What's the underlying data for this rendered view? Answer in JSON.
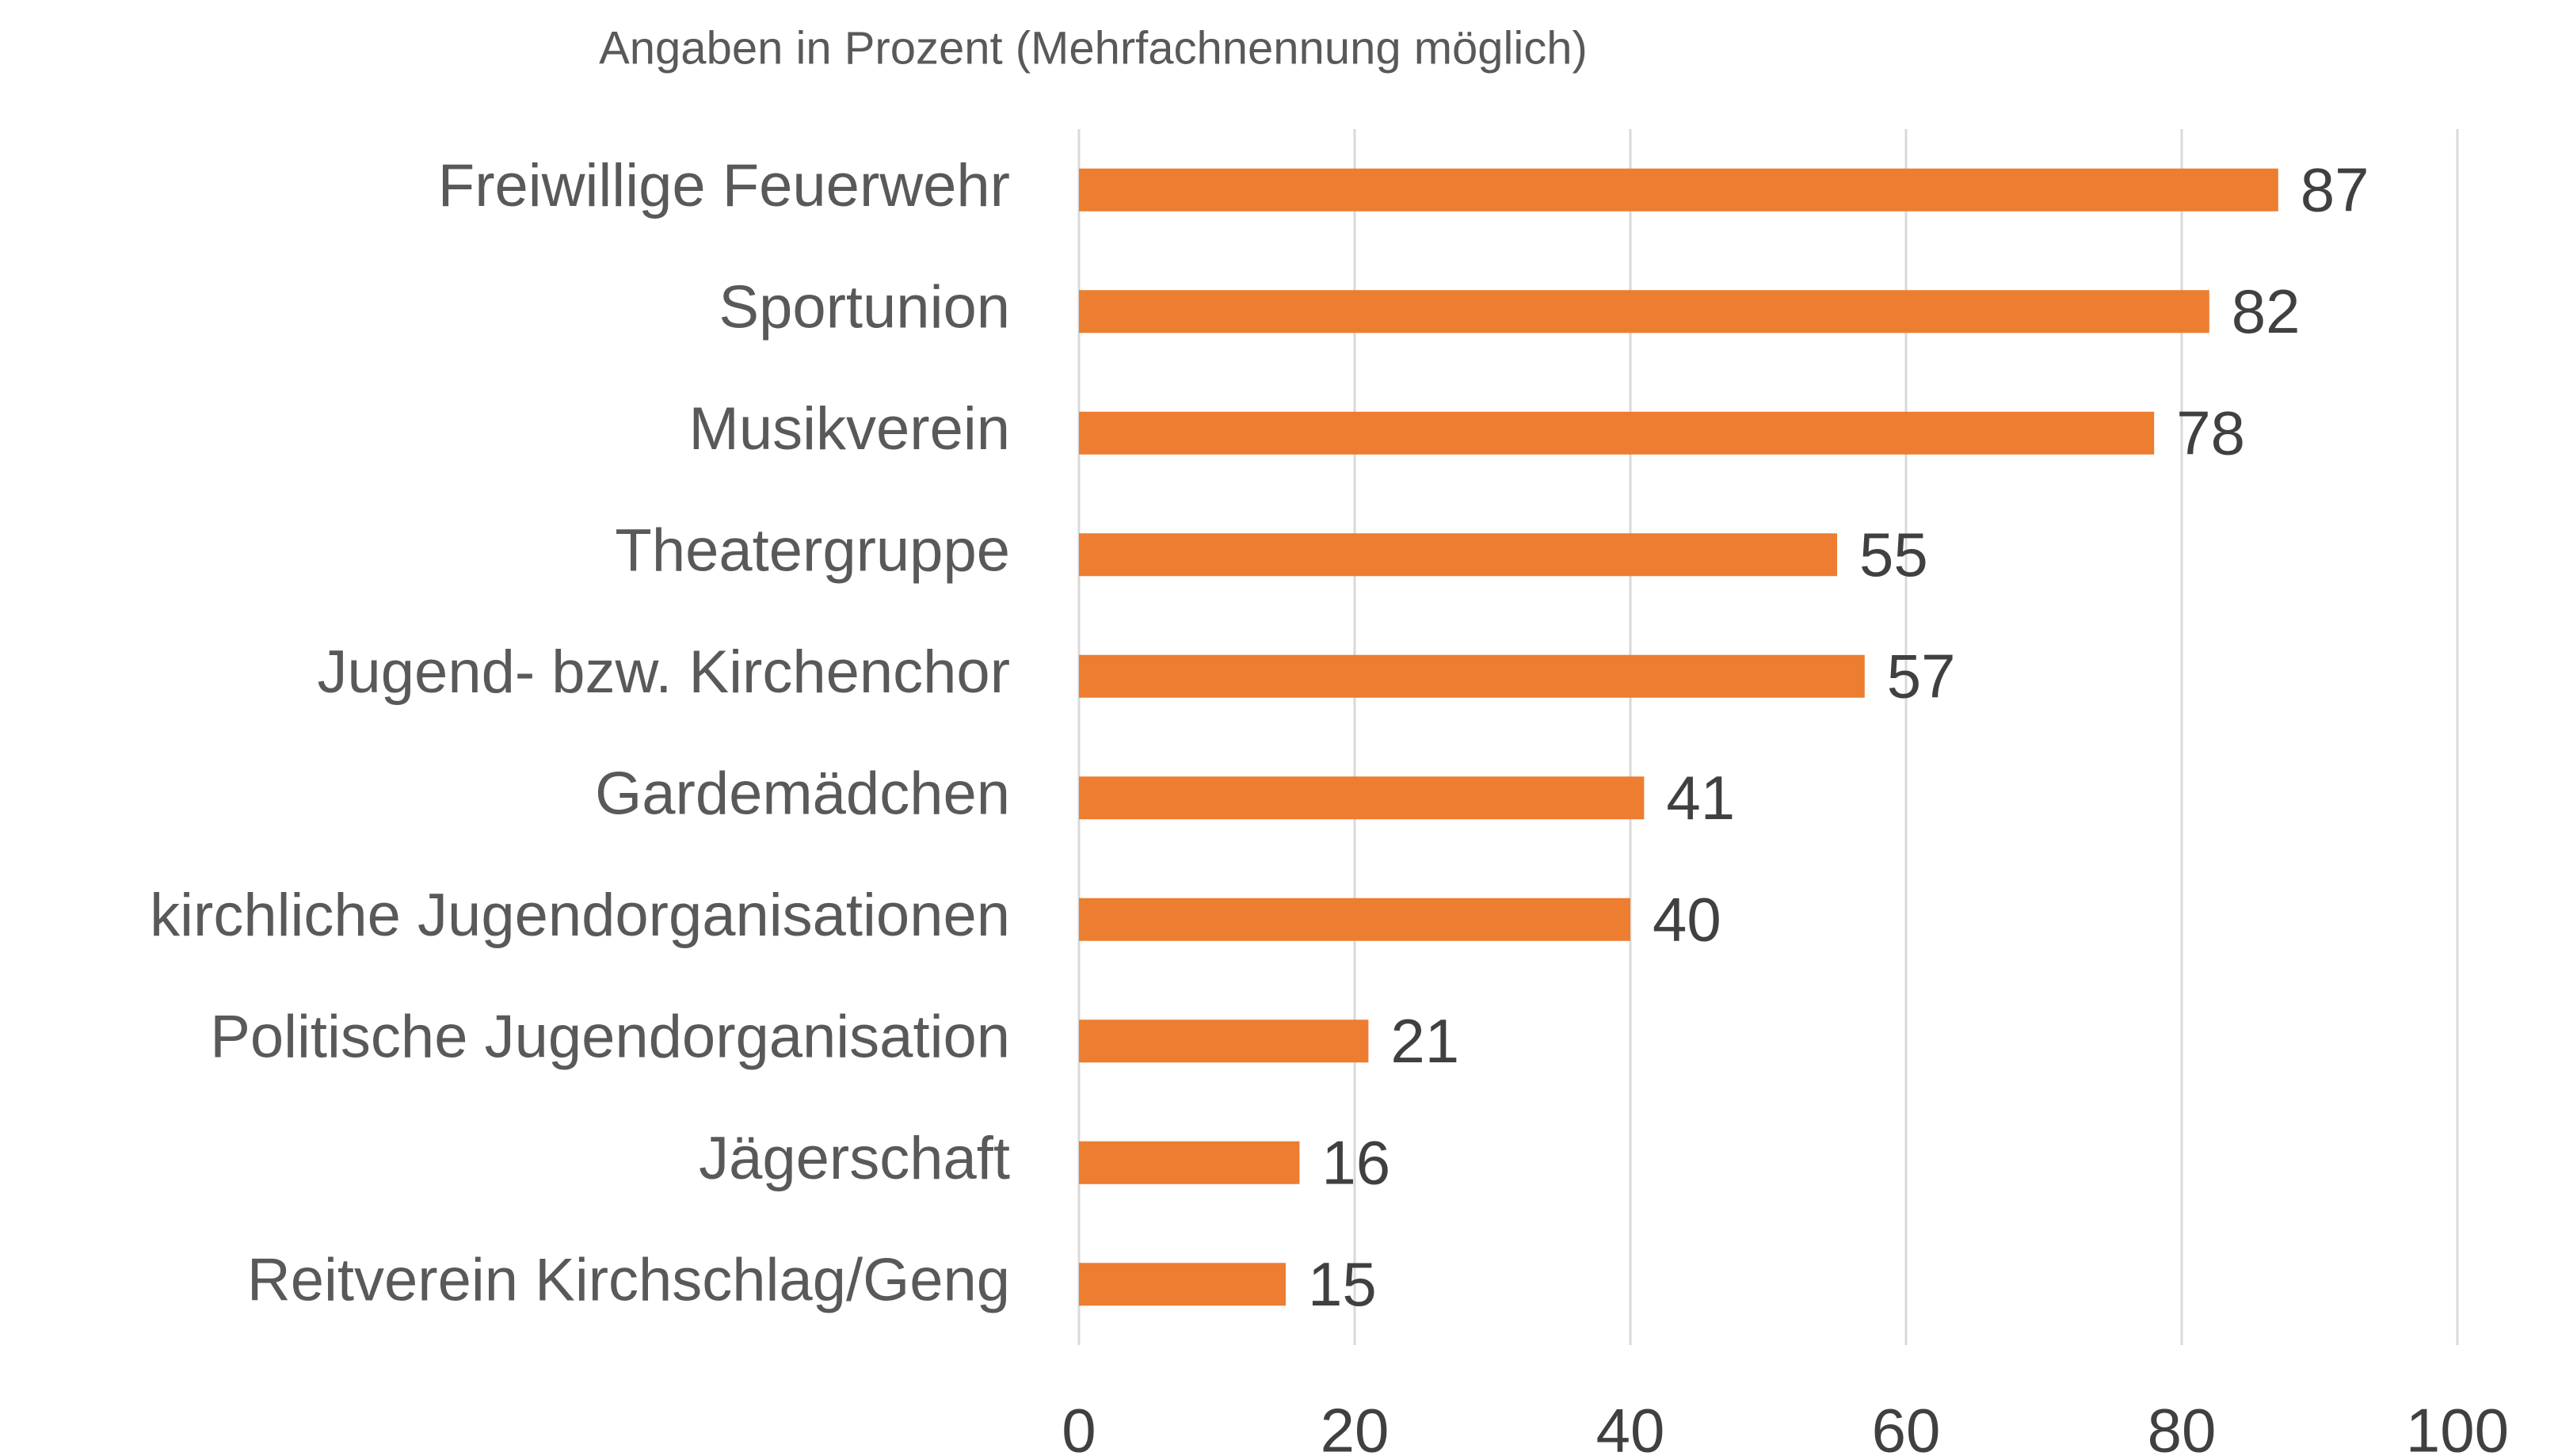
{
  "chart_data": {
    "type": "bar",
    "orientation": "horizontal",
    "title": "Angaben in Prozent (Mehrfachnennung möglich)",
    "categories": [
      "Freiwillige Feuerwehr",
      "Sportunion",
      "Musikverein",
      "Theatergruppe",
      "Jugend- bzw. Kirchenchor",
      "Gardemädchen",
      "kirchliche Jugendorganisationen",
      "Politische Jugendorganisation",
      "Jägerschaft",
      "Reitverein Kirchschlag/Geng"
    ],
    "values": [
      87,
      82,
      78,
      55,
      57,
      41,
      40,
      21,
      16,
      15
    ],
    "color": "#ed7d31",
    "xlim": [
      0,
      100
    ],
    "xticks": [
      0,
      20,
      40,
      60,
      80,
      100
    ],
    "grid": true
  }
}
